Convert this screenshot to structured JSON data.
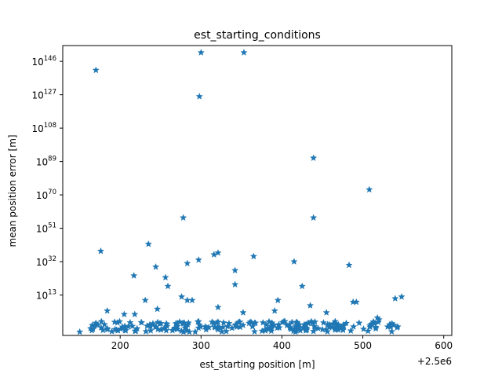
{
  "chart_data": {
    "type": "scatter",
    "title": "est_starting_conditions",
    "xlabel": "est_starting position [m]",
    "ylabel": "mean position error [m]",
    "x_offset_label": "+2.5e6",
    "x_scale": "linear",
    "y_scale": "log",
    "xlim": [
      2500129,
      2500610
    ],
    "ylim_log10": [
      -10,
      155
    ],
    "x_ticks": [
      200,
      300,
      400,
      500,
      600
    ],
    "x_tick_labels": [
      "200",
      "300",
      "400",
      "500",
      "600"
    ],
    "y_ticks_log10": [
      13,
      32,
      51,
      70,
      89,
      108,
      127,
      146
    ],
    "y_tick_labels": [
      {
        "base": "10",
        "exp": "13"
      },
      {
        "base": "10",
        "exp": "32"
      },
      {
        "base": "10",
        "exp": "51"
      },
      {
        "base": "10",
        "exp": "70"
      },
      {
        "base": "10",
        "exp": "89"
      },
      {
        "base": "10",
        "exp": "108"
      },
      {
        "base": "10",
        "exp": "127"
      },
      {
        "base": "10",
        "exp": "146"
      }
    ],
    "grid": false,
    "legend": "none",
    "marker": "star",
    "color": "#1f77b4",
    "series": [
      {
        "x": [
          2500170,
          2500300,
          2500353,
          2500298,
          2500439,
          2500508,
          2500278,
          2500439,
          2500235,
          2500176,
          2500365,
          2500321,
          2500316,
          2500297,
          2500283,
          2500415,
          2500244,
          2500483,
          2500342,
          2500217,
          2500256,
          2500342,
          2500259,
          2500425,
          2500276,
          2500548,
          2500540,
          2500231,
          2500289,
          2500283,
          2500395,
          2500492,
          2500488,
          2500435,
          2500321,
          2500184,
          2500246,
          2500391,
          2500352,
          2500218,
          2500455,
          2500205,
          2500518,
          2500520,
          2500150
        ],
        "y_log10": [
          141,
          151,
          151,
          126,
          91,
          73,
          57,
          57,
          42,
          38,
          35,
          37,
          36,
          33,
          31,
          32,
          29,
          30,
          27,
          24,
          23,
          19,
          18,
          18,
          12,
          12,
          11,
          10,
          10,
          10,
          10,
          9,
          9,
          7,
          6,
          4,
          5,
          4,
          3,
          2,
          3,
          2,
          0,
          -1,
          -8
        ]
      },
      {
        "x_range": [
          2500160,
          2500545
        ],
        "y_log10_range": [
          -8,
          -2
        ],
        "count": 220,
        "description": "dense band of points near the bottom of the plot"
      }
    ]
  }
}
